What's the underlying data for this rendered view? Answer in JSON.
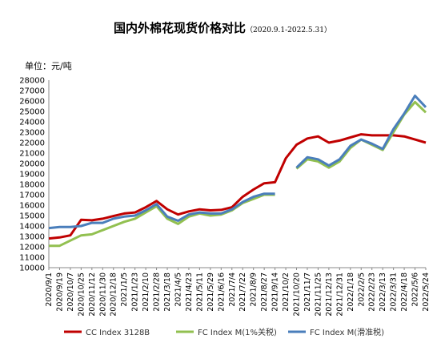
{
  "chart_data": {
    "type": "line",
    "title": "国内外棉花现货价格对比",
    "subtitle": "（2020.9.1-2022.5.31）",
    "ylabel": "单位：元/吨",
    "ylim": [
      10000,
      28000
    ],
    "yticks": [
      10000,
      11000,
      12000,
      13000,
      14000,
      15000,
      16000,
      17000,
      18000,
      19000,
      20000,
      21000,
      22000,
      23000,
      24000,
      25000,
      26000,
      27000,
      28000
    ],
    "x": [
      "2020/9/1",
      "2020/9/19",
      "2020/10/7",
      "2020/10/25",
      "2020/11/12",
      "2020/11/30",
      "2020/12/18",
      "2021/1/5",
      "2021/1/23",
      "2021/2/10",
      "2021/2/28",
      "2021/3/18",
      "2021/4/5",
      "2021/4/23",
      "2021/5/11",
      "2021/5/29",
      "2021/6/16",
      "2021/7/4",
      "2021/7/22",
      "2021/8/9",
      "2021/8/27",
      "2021/9/14",
      "2021/10/2",
      "2021/10/20",
      "2021/11/7",
      "2021/11/25",
      "2021/12/13",
      "2021/12/31",
      "2022/1/18",
      "2022/2/5",
      "2022/2/23",
      "2022/3/13",
      "2022/3/31",
      "2022/4/18",
      "2022/5/6",
      "2022/5/24"
    ],
    "grid": false,
    "legend_position": "bottom",
    "series": [
      {
        "name": "CC Index 3128B",
        "color": "#c00000",
        "values": [
          12800,
          12900,
          13100,
          14600,
          14550,
          14700,
          14950,
          15200,
          15300,
          15800,
          16400,
          15600,
          15100,
          15400,
          15600,
          15500,
          15550,
          15800,
          16800,
          17500,
          18100,
          18200,
          20500,
          21800,
          22400,
          22600,
          22000,
          22200,
          22500,
          22800,
          22700,
          22700,
          22700,
          22600,
          22300,
          22000
        ]
      },
      {
        "name": "FC Index M(1%关税)",
        "color": "#92c050",
        "values": [
          12100,
          12100,
          12600,
          13100,
          13200,
          13600,
          14000,
          14400,
          14700,
          15300,
          15900,
          14700,
          14200,
          14900,
          15200,
          15000,
          15100,
          15500,
          16200,
          16600,
          17000,
          17000,
          null,
          19500,
          20400,
          20200,
          19600,
          20200,
          21500,
          22300,
          21800,
          21300,
          23000,
          24700,
          25900,
          24900
        ]
      },
      {
        "name": "FC Index M(滑准税)",
        "color": "#4a7ebb",
        "values": [
          13800,
          13900,
          13900,
          14000,
          14300,
          14300,
          14700,
          14900,
          15000,
          15500,
          16100,
          14900,
          14500,
          15100,
          15300,
          15200,
          15200,
          15600,
          16300,
          16800,
          17100,
          17100,
          null,
          19600,
          20600,
          20400,
          19800,
          20400,
          21700,
          22300,
          21900,
          21400,
          23300,
          24800,
          26500,
          25400
        ]
      }
    ]
  }
}
